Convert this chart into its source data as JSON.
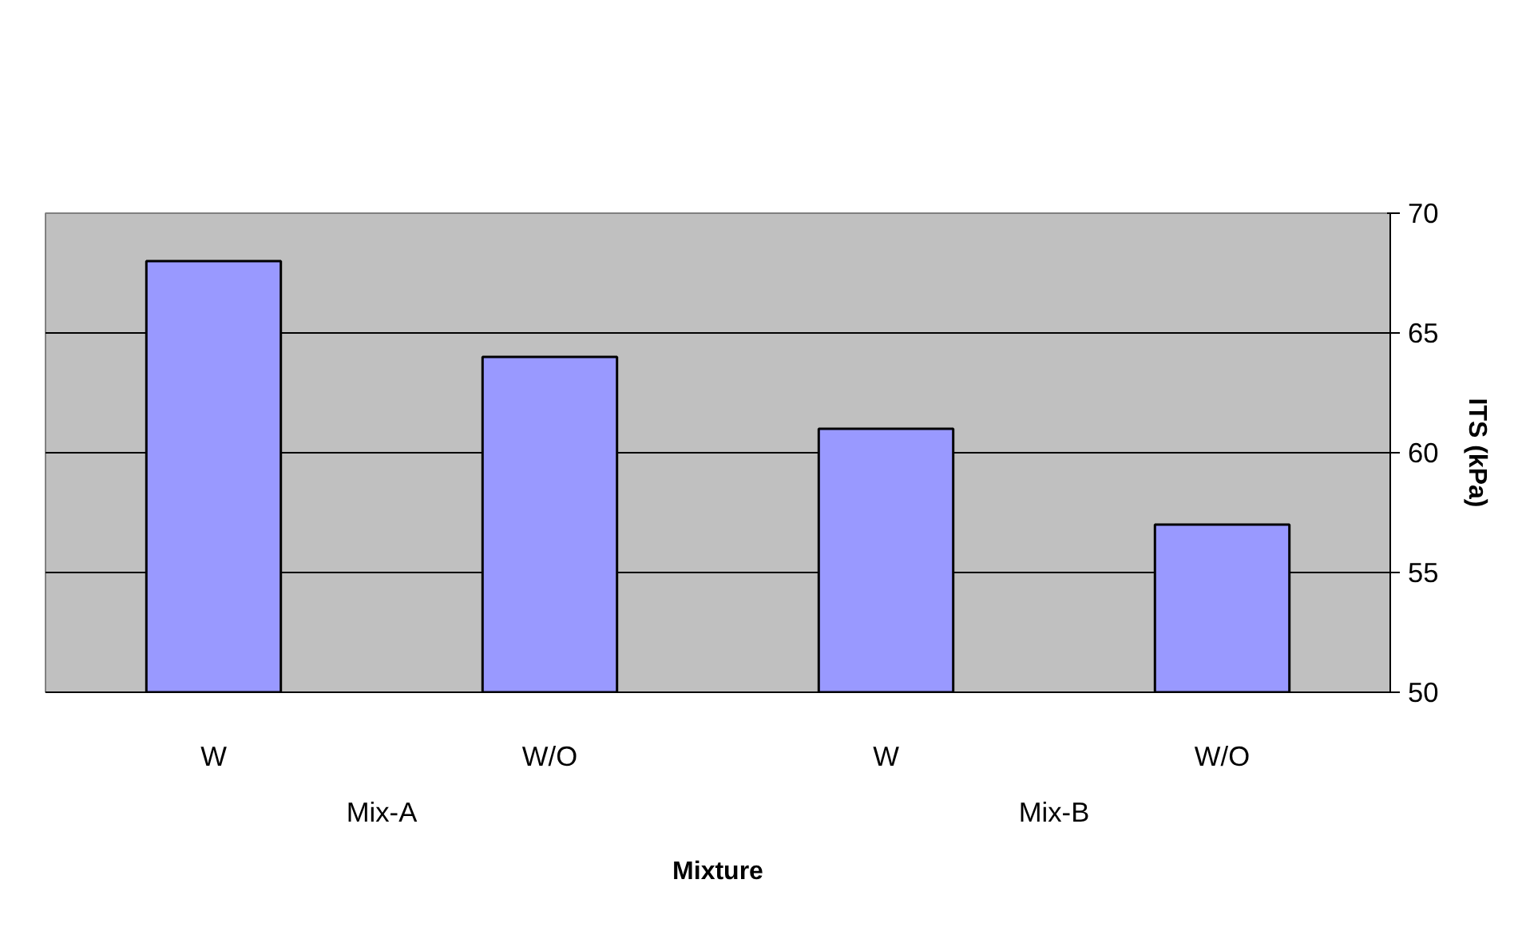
{
  "chart_data": {
    "type": "bar",
    "xlabel": "Mixture",
    "ylabel": "ITS (kPa)",
    "categories": [
      "W",
      "W/O",
      "W",
      "W/O"
    ],
    "values": [
      68,
      64,
      61,
      57
    ],
    "color": "#9999ff",
    "ylim": [
      50,
      70
    ],
    "yticks": [
      50,
      55,
      60,
      65,
      70
    ],
    "grid": "y",
    "annotations": [
      "Mix-A",
      "Mix-B"
    ]
  }
}
